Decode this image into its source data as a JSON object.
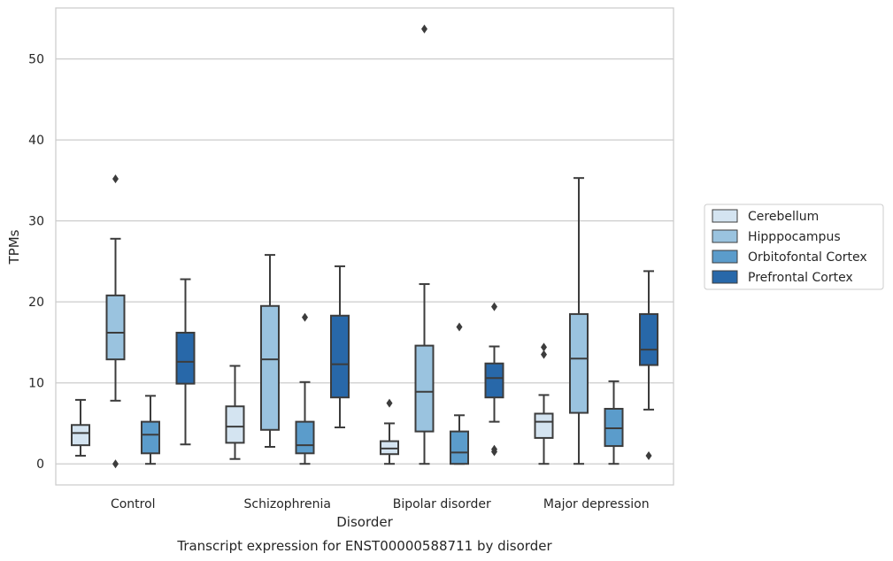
{
  "chart_data": {
    "type": "box",
    "caption": "Transcript expression for ENST00000588711 by disorder",
    "xlabel": "Disorder",
    "ylabel": "TPMs",
    "ylim": [
      -2.6,
      56.3
    ],
    "yticks": [
      0,
      10,
      20,
      30,
      40,
      50
    ],
    "grid": "horizontal",
    "legend_position": "right-center",
    "categories": [
      "Control",
      "Schizophrenia",
      "Bipolar disorder",
      "Major depression"
    ],
    "series": [
      {
        "name": "Cerebellum",
        "color": "#d4e4f1",
        "boxes": [
          {
            "whisker_low": 1.0,
            "q1": 2.3,
            "median": 3.8,
            "q3": 4.8,
            "whisker_high": 7.9,
            "outliers": []
          },
          {
            "whisker_low": 0.6,
            "q1": 2.6,
            "median": 4.6,
            "q3": 7.1,
            "whisker_high": 12.1,
            "outliers": []
          },
          {
            "whisker_low": 0.0,
            "q1": 1.2,
            "median": 1.9,
            "q3": 2.8,
            "whisker_high": 5.0,
            "outliers": [
              7.5
            ]
          },
          {
            "whisker_low": 0.0,
            "q1": 3.2,
            "median": 5.2,
            "q3": 6.2,
            "whisker_high": 8.5,
            "outliers": [
              13.5,
              14.4
            ]
          }
        ]
      },
      {
        "name": "Hipppocampus",
        "color": "#9ac3df",
        "boxes": [
          {
            "whisker_low": 7.8,
            "q1": 12.9,
            "median": 16.2,
            "q3": 20.8,
            "whisker_high": 27.8,
            "outliers": [
              0.0,
              35.2
            ]
          },
          {
            "whisker_low": 2.1,
            "q1": 4.2,
            "median": 12.9,
            "q3": 19.5,
            "whisker_high": 25.8,
            "outliers": []
          },
          {
            "whisker_low": 0.0,
            "q1": 4.0,
            "median": 8.9,
            "q3": 14.6,
            "whisker_high": 22.2,
            "outliers": [
              53.7
            ]
          },
          {
            "whisker_low": 0.0,
            "q1": 6.3,
            "median": 13.0,
            "q3": 18.5,
            "whisker_high": 35.3,
            "outliers": []
          }
        ]
      },
      {
        "name": "Orbitofontal Cortex",
        "color": "#5b9ccb",
        "boxes": [
          {
            "whisker_low": 0.0,
            "q1": 1.3,
            "median": 3.6,
            "q3": 5.2,
            "whisker_high": 8.4,
            "outliers": []
          },
          {
            "whisker_low": 0.0,
            "q1": 1.3,
            "median": 2.3,
            "q3": 5.2,
            "whisker_high": 10.1,
            "outliers": [
              18.1
            ]
          },
          {
            "whisker_low": 0.0,
            "q1": 0.0,
            "median": 1.4,
            "q3": 4.0,
            "whisker_high": 6.0,
            "outliers": [
              16.9
            ]
          },
          {
            "whisker_low": 0.0,
            "q1": 2.2,
            "median": 4.4,
            "q3": 6.8,
            "whisker_high": 10.2,
            "outliers": []
          }
        ]
      },
      {
        "name": "Prefrontal Cortex",
        "color": "#2868a9",
        "boxes": [
          {
            "whisker_low": 2.4,
            "q1": 9.9,
            "median": 12.6,
            "q3": 16.2,
            "whisker_high": 22.8,
            "outliers": []
          },
          {
            "whisker_low": 4.5,
            "q1": 8.2,
            "median": 12.3,
            "q3": 18.3,
            "whisker_high": 24.4,
            "outliers": []
          },
          {
            "whisker_low": 5.2,
            "q1": 8.2,
            "median": 10.6,
            "q3": 12.4,
            "whisker_high": 14.5,
            "outliers": [
              1.5,
              1.8,
              19.4
            ]
          },
          {
            "whisker_low": 6.7,
            "q1": 12.2,
            "median": 14.1,
            "q3": 18.5,
            "whisker_high": 23.8,
            "outliers": [
              1.0
            ]
          }
        ]
      }
    ]
  }
}
